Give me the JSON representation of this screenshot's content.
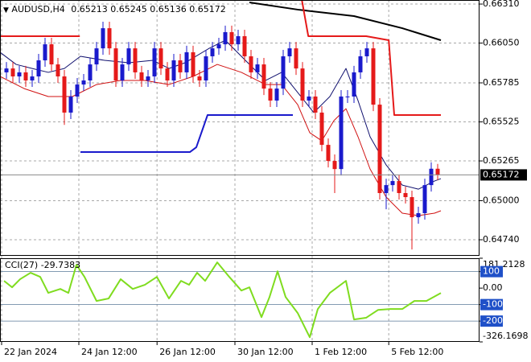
{
  "chart_data": [
    {
      "type": "candlestick",
      "symbol": "AUDUSD,H4",
      "x": [
        0,
        1,
        2,
        3,
        4,
        5,
        6,
        7,
        8,
        9,
        10,
        11,
        12,
        13,
        14,
        15,
        16,
        17,
        18,
        19,
        20,
        21,
        22,
        23,
        24,
        25,
        26,
        27,
        28,
        29,
        30,
        31,
        32,
        33,
        34,
        35,
        36,
        37,
        38,
        39,
        40,
        41,
        42,
        43,
        44,
        45,
        46,
        47,
        48,
        49,
        50,
        51,
        52,
        53,
        54,
        55,
        56,
        57,
        58,
        59,
        60,
        61,
        62,
        63,
        64,
        65,
        66,
        67
      ],
      "open": [
        0.65855,
        0.65881,
        0.65828,
        0.65855,
        0.65801,
        0.65828,
        0.65935,
        0.66042,
        0.65908,
        0.65828,
        0.65587,
        0.65694,
        0.65774,
        0.65801,
        0.65908,
        0.66015,
        0.66149,
        0.66015,
        0.65801,
        0.65908,
        0.66015,
        0.65855,
        0.65801,
        0.65828,
        0.66015,
        0.65881,
        0.65801,
        0.65935,
        0.65855,
        0.65989,
        0.65828,
        0.65801,
        0.65962,
        0.66015,
        0.66042,
        0.66123,
        0.66042,
        0.66096,
        0.65962,
        0.65855,
        0.65908,
        0.65747,
        0.65667,
        0.65747,
        0.65962,
        0.66015,
        0.65881,
        0.65667,
        0.65694,
        0.65587,
        0.65372,
        0.65265,
        0.65211,
        0.65694,
        0.65694,
        0.65855,
        0.65962,
        0.66015,
        0.6564,
        0.65051,
        0.65104,
        0.65131,
        0.65051,
        0.65024,
        0.6489,
        0.64917,
        0.65104,
        0.65213
      ],
      "high": [
        0.65924,
        0.65924,
        0.65898,
        0.65898,
        0.65871,
        0.65978,
        0.66085,
        0.66085,
        0.65951,
        0.65871,
        0.65737,
        0.65817,
        0.65844,
        0.65951,
        0.66058,
        0.66192,
        0.66192,
        0.66058,
        0.65951,
        0.66058,
        0.66058,
        0.65898,
        0.65871,
        0.66058,
        0.66058,
        0.65924,
        0.65978,
        0.65978,
        0.66032,
        0.66032,
        0.65871,
        0.66005,
        0.66058,
        0.66085,
        0.66166,
        0.66166,
        0.66139,
        0.66139,
        0.66005,
        0.65951,
        0.65951,
        0.6579,
        0.6579,
        0.66005,
        0.66058,
        0.66058,
        0.65924,
        0.65737,
        0.65737,
        0.6563,
        0.65415,
        0.65308,
        0.65737,
        0.65737,
        0.65898,
        0.66005,
        0.66058,
        0.66058,
        0.65683,
        0.65147,
        0.65174,
        0.65174,
        0.65094,
        0.65067,
        0.6496,
        0.65147,
        0.65256,
        0.65245
      ],
      "low": [
        0.65812,
        0.65785,
        0.65785,
        0.65758,
        0.65758,
        0.65785,
        0.65892,
        0.65865,
        0.65785,
        0.65505,
        0.65544,
        0.65651,
        0.65731,
        0.65758,
        0.65865,
        0.65972,
        0.65972,
        0.65758,
        0.65758,
        0.65865,
        0.65812,
        0.65758,
        0.65758,
        0.65785,
        0.65838,
        0.65758,
        0.65758,
        0.65812,
        0.65812,
        0.65785,
        0.65758,
        0.65758,
        0.65919,
        0.65972,
        0.65999,
        0.65999,
        0.65999,
        0.65919,
        0.65812,
        0.65812,
        0.65704,
        0.65624,
        0.65624,
        0.65704,
        0.65919,
        0.65838,
        0.65624,
        0.65624,
        0.65544,
        0.65329,
        0.65222,
        0.65051,
        0.65168,
        0.65651,
        0.65651,
        0.65812,
        0.65919,
        0.65597,
        0.65008,
        0.64943,
        0.65061,
        0.65008,
        0.64981,
        0.64675,
        0.64847,
        0.64874,
        0.65061,
        0.65136
      ],
      "close": [
        0.65881,
        0.65828,
        0.65855,
        0.65801,
        0.65828,
        0.65935,
        0.66042,
        0.65908,
        0.65828,
        0.65587,
        0.65694,
        0.65774,
        0.65801,
        0.65908,
        0.66015,
        0.66149,
        0.66015,
        0.65801,
        0.65908,
        0.66015,
        0.65855,
        0.65801,
        0.65828,
        0.66015,
        0.65881,
        0.65801,
        0.65935,
        0.65855,
        0.65989,
        0.65828,
        0.65801,
        0.65962,
        0.66015,
        0.66042,
        0.66123,
        0.66042,
        0.66096,
        0.65962,
        0.65855,
        0.65908,
        0.65747,
        0.65667,
        0.65747,
        0.65962,
        0.66015,
        0.65881,
        0.65667,
        0.65694,
        0.65587,
        0.65372,
        0.65265,
        0.65211,
        0.65694,
        0.65694,
        0.65855,
        0.65962,
        0.66015,
        0.6564,
        0.65051,
        0.65104,
        0.65131,
        0.65051,
        0.65024,
        0.6489,
        0.64917,
        0.65104,
        0.65213,
        0.65172
      ],
      "up_color": "#1a1acc",
      "down_color": "#e51a1a",
      "lines": [
        {
          "color": "#000000",
          "width": 2,
          "x": [
            37.75,
            45.25,
            54,
            61.5,
            67.5
          ],
          "values": [
            0.66321,
            0.66273,
            0.6623,
            0.66149,
            0.66069
          ]
        },
        {
          "color": "#e51a1a",
          "width": 2,
          "x": [
            -1,
            11.4,
            11.4,
            45.9,
            46.9,
            55.9,
            59.4,
            60.25,
            67.5
          ],
          "values": [
            0.66096,
            0.66096,
            null,
            0.66337,
            0.66096,
            0.66096,
            0.66069,
            0.65571,
            0.65571
          ]
        },
        {
          "color": "#1a1acc",
          "width": 2,
          "x": [
            11.5,
            28.5,
            29.5,
            31.25,
            44.5
          ],
          "values": [
            0.65324,
            0.65324,
            0.65356,
            0.65571,
            0.65571
          ]
        },
        {
          "color": "#10106e",
          "width": 1,
          "x": [
            -1,
            1.5,
            4,
            6.5,
            9,
            11.5,
            15.25,
            19,
            22.75,
            25.25,
            27.75,
            31.5,
            34,
            36.5,
            40.25,
            42.75,
            45.25,
            47.75,
            50.25,
            52.75,
            54.625,
            56.5,
            59,
            61.5,
            64,
            66.5,
            67.5
          ],
          "values": [
            0.65989,
            0.65908,
            0.65881,
            0.65855,
            0.65881,
            0.65962,
            0.65935,
            0.65919,
            0.65935,
            0.65881,
            0.65919,
            0.66015,
            0.66069,
            0.65962,
            0.65801,
            0.65855,
            0.65721,
            0.65587,
            0.65694,
            0.65881,
            0.65667,
            0.65426,
            0.65238,
            0.65104,
            0.65077,
            0.65131,
            0.65147
          ]
        },
        {
          "color": "#d01010",
          "width": 1,
          "x": [
            -1,
            2.75,
            6.5,
            10.25,
            14,
            17.75,
            21.5,
            25.25,
            29,
            32.75,
            36.5,
            40.25,
            42.75,
            45.25,
            47.125,
            49,
            50.875,
            52.75,
            54.625,
            56.5,
            59,
            61.5,
            64,
            66.5,
            67.5
          ],
          "values": [
            0.65828,
            0.65747,
            0.65694,
            0.65694,
            0.65774,
            0.65801,
            0.65801,
            0.65774,
            0.65828,
            0.65908,
            0.65855,
            0.65774,
            0.65774,
            0.6564,
            0.65453,
            0.65399,
            0.65533,
            0.65613,
            0.65426,
            0.65211,
            0.65024,
            0.64917,
            0.64901,
            0.64917,
            0.64933
          ]
        }
      ],
      "xlim": [
        -1,
        73.5
      ],
      "xticks": [
        {
          "value": -0.75,
          "label": "22 Jan 2024"
        },
        {
          "value": 11.25,
          "label": "24 Jan 12:00"
        },
        {
          "value": 23.4,
          "label": "26 Jan 12:00"
        },
        {
          "value": 35.5,
          "label": "30 Jan 12:00"
        },
        {
          "value": 47.5,
          "label": "1 Feb 12:00"
        },
        {
          "value": 59.4,
          "label": "5 Feb 12:00"
        }
      ],
      "ylim": [
        0.64633,
        0.66337
      ],
      "yticks": [
        {
          "value": 0.6631,
          "label": "0.66310"
        },
        {
          "value": 0.6605,
          "label": "0.66050"
        },
        0.65785,
        0.65525,
        0.65265,
        {
          "value": 0.65,
          "label": "0.65000"
        },
        {
          "value": 0.6474,
          "label": "0.64740"
        }
      ],
      "grid": true
    },
    {
      "type": "line",
      "title": "CCI(27)",
      "color": "#7fdc1f",
      "x": [
        -0.375,
        0.875,
        2.125,
        3.75,
        5.25,
        6.5,
        8.375,
        9.625,
        10.875,
        12.125,
        14,
        15.875,
        17.75,
        19.625,
        21.5,
        23.375,
        25.25,
        27.125,
        28.375,
        29.625,
        30.875,
        32.75,
        34.625,
        36.5,
        37.75,
        39.625,
        40.875,
        42.125,
        43.375,
        45.25,
        47.125,
        48.375,
        50.25,
        52.75,
        54,
        55.875,
        57.75,
        59.625,
        61.5,
        63.375,
        65.25,
        67.5
      ],
      "values": [
        44,
        5,
        54,
        93,
        68,
        -29,
        -5,
        -29,
        141,
        68,
        -78,
        -63,
        54,
        -5,
        20,
        68,
        -63,
        44,
        20,
        93,
        44,
        156,
        68,
        -15,
        5,
        -176,
        -54,
        102,
        -54,
        -151,
        -298,
        -127,
        -29,
        44,
        -190,
        -180,
        -132,
        -127,
        -127,
        -78,
        -78,
        -29.7383
      ],
      "ylim": [
        -326.1698,
        181.2128
      ],
      "yticks": [
        181.2128,
        100,
        {
          "value": 0,
          "label": "0.00"
        },
        -100,
        -200,
        -326.1698
      ],
      "levels": [
        100,
        -100,
        -200
      ]
    }
  ]
}
